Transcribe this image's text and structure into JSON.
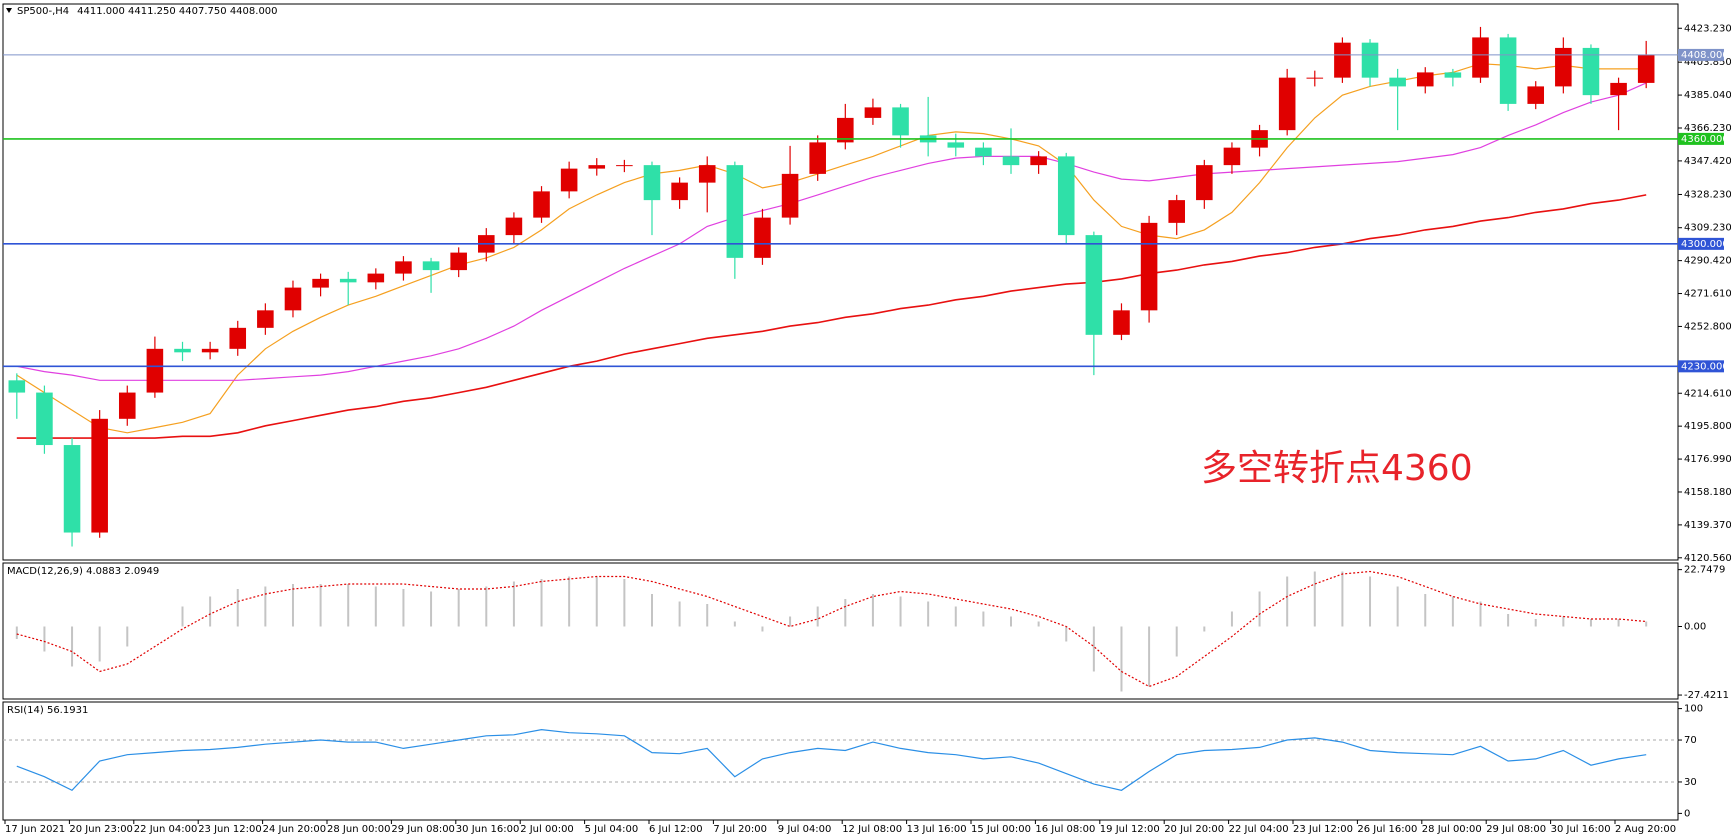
{
  "chart_data": [
    {
      "type": "candlestick",
      "title": "SP500-,H4",
      "subtitle": "4411.000 4411.250 4407.750 4408.000",
      "annotation": "多空转折点4360",
      "annotation_color": "#e8232a",
      "up_color": "#e00000",
      "down_color": "#2fe0a8",
      "open": [
        4222,
        4215,
        4185,
        4135,
        4200,
        4215,
        4240,
        4238,
        4240,
        4252,
        4262,
        4275,
        4280,
        4278,
        4283,
        4290,
        4285,
        4295,
        4305,
        4315,
        4330,
        4343,
        4345,
        4345,
        4325,
        4335,
        4345,
        4292,
        4315,
        4340,
        4358,
        4372,
        4378,
        4362,
        4358,
        4355,
        4350,
        4345,
        4350,
        4305,
        4248,
        4262,
        4312,
        4325,
        4345,
        4355,
        4365,
        4395,
        4395,
        4415,
        4395,
        4390,
        4398,
        4395,
        4418,
        4380,
        4390,
        4412,
        4385,
        4392
      ],
      "high": [
        4226,
        4219,
        4189,
        4205,
        4219,
        4247,
        4244,
        4244,
        4256,
        4266,
        4279,
        4283,
        4284,
        4286,
        4293,
        4292,
        4298,
        4309,
        4318,
        4333,
        4347,
        4349,
        4348,
        4347,
        4338,
        4350,
        4347,
        4320,
        4356,
        4362,
        4380,
        4383,
        4380,
        4384,
        4363,
        4358,
        4366,
        4353,
        4352,
        4307,
        4266,
        4316,
        4328,
        4348,
        4358,
        4368,
        4400,
        4399,
        4418,
        4417,
        4400,
        4401,
        4400,
        4424,
        4420,
        4393,
        4418,
        4414,
        4395,
        4416
      ],
      "low": [
        4200,
        4180,
        4127,
        4132,
        4196,
        4212,
        4233,
        4234,
        4236,
        4248,
        4258,
        4270,
        4265,
        4274,
        4279,
        4272,
        4281,
        4290,
        4300,
        4312,
        4326,
        4339,
        4341,
        4305,
        4320,
        4318,
        4280,
        4288,
        4311,
        4336,
        4354,
        4368,
        4355,
        4350,
        4350,
        4345,
        4340,
        4340,
        4300,
        4225,
        4245,
        4255,
        4305,
        4320,
        4340,
        4350,
        4362,
        4390,
        4392,
        4390,
        4365,
        4386,
        4390,
        4392,
        4376,
        4377,
        4386,
        4380,
        4365,
        4389
      ],
      "close": [
        4215,
        4185,
        4135,
        4200,
        4215,
        4240,
        4238,
        4240,
        4252,
        4262,
        4275,
        4280,
        4278,
        4283,
        4290,
        4285,
        4295,
        4305,
        4315,
        4330,
        4343,
        4345,
        4345,
        4325,
        4335,
        4345,
        4292,
        4315,
        4340,
        4358,
        4372,
        4378,
        4362,
        4358,
        4355,
        4350,
        4345,
        4350,
        4305,
        4248,
        4262,
        4312,
        4325,
        4345,
        4355,
        4365,
        4395,
        4395,
        4415,
        4395,
        4390,
        4398,
        4395,
        4418,
        4380,
        4390,
        4412,
        4385,
        4392,
        4408
      ],
      "series": [
        {
          "color": "#f5a020",
          "values": [
            4225,
            4215,
            4205,
            4195,
            4192,
            4195,
            4198,
            4203,
            4225,
            4240,
            4250,
            4258,
            4265,
            4270,
            4276,
            4282,
            4288,
            4292,
            4298,
            4308,
            4320,
            4328,
            4335,
            4340,
            4342,
            4345,
            4340,
            4332,
            4335,
            4340,
            4345,
            4350,
            4356,
            4362,
            4364,
            4363,
            4360,
            4356,
            4345,
            4325,
            4310,
            4305,
            4303,
            4308,
            4318,
            4335,
            4355,
            4372,
            4385,
            4390,
            4393,
            4396,
            4398,
            4403,
            4402,
            4400,
            4402,
            4400,
            4400,
            4400
          ]
        },
        {
          "color": "#e040e0",
          "values": [
            4230,
            4227,
            4225,
            4222,
            4222,
            4222,
            4222,
            4222,
            4222,
            4223,
            4224,
            4225,
            4227,
            4230,
            4233,
            4236,
            4240,
            4246,
            4253,
            4262,
            4270,
            4278,
            4286,
            4293,
            4300,
            4310,
            4315,
            4319,
            4323,
            4328,
            4333,
            4338,
            4342,
            4346,
            4349,
            4350,
            4350,
            4350,
            4346,
            4341,
            4337,
            4336,
            4338,
            4340,
            4341,
            4342,
            4343,
            4344,
            4345,
            4346,
            4347,
            4349,
            4351,
            4355,
            4362,
            4368,
            4375,
            4381,
            4385,
            4392
          ]
        },
        {
          "color": "#e81010",
          "values": [
            4189,
            4189,
            4189,
            4189,
            4189,
            4189,
            4190,
            4190,
            4192,
            4196,
            4199,
            4202,
            4205,
            4207,
            4210,
            4212,
            4215,
            4218,
            4222,
            4226,
            4230,
            4233,
            4237,
            4240,
            4243,
            4246,
            4248,
            4250,
            4253,
            4255,
            4258,
            4260,
            4263,
            4265,
            4268,
            4270,
            4273,
            4275,
            4277,
            4278,
            4280,
            4283,
            4285,
            4288,
            4290,
            4293,
            4295,
            4298,
            4300,
            4303,
            4305,
            4308,
            4310,
            4313,
            4315,
            4318,
            4320,
            4323,
            4325,
            4328
          ]
        }
      ],
      "levels": [
        {
          "value": 4408,
          "label": "4408.000",
          "color": "#7f93c9"
        },
        {
          "value": 4360,
          "label": "4360.000",
          "color": "#1fc21f"
        },
        {
          "value": 4300,
          "label": "4300.000",
          "color": "#2f54d6"
        },
        {
          "value": 4230,
          "label": "4230.000",
          "color": "#2f54d6"
        }
      ],
      "ylim": [
        4119.3,
        4437.1
      ],
      "yticks": [
        {
          "value": 4423.23,
          "label": "4423.230"
        },
        {
          "value": 4403.85,
          "label": "4403.850"
        },
        {
          "value": 4385.04,
          "label": "4385.040"
        },
        {
          "value": 4366.23,
          "label": "4366.230"
        },
        {
          "value": 4347.42,
          "label": "4347.420"
        },
        {
          "value": 4328.23,
          "label": "4328.230"
        },
        {
          "value": 4309.23,
          "label": "4309.230"
        },
        {
          "value": 4290.42,
          "label": "4290.420"
        },
        {
          "value": 4271.61,
          "label": "4271.610"
        },
        {
          "value": 4252.8,
          "label": "4252.800"
        },
        {
          "value": 4214.61,
          "label": "4214.610"
        },
        {
          "value": 4195.8,
          "label": "4195.800"
        },
        {
          "value": 4176.99,
          "label": "4176.990"
        },
        {
          "value": 4158.18,
          "label": "4158.180"
        },
        {
          "value": 4139.37,
          "label": "4139.370"
        },
        {
          "value": 4120.56,
          "label": "4120.560"
        }
      ]
    },
    {
      "type": "macd",
      "title": "MACD(12,26,9) 4.0883 2.0949",
      "histogram": {
        "color": "#c4c4c4",
        "values": [
          -5,
          -10,
          -16,
          -14,
          -8,
          0,
          8,
          12,
          15,
          16,
          17,
          17,
          17,
          16,
          15,
          14,
          15,
          16,
          18,
          19,
          20,
          20,
          19,
          13,
          10,
          9,
          2,
          -2,
          4,
          8,
          11,
          13,
          12,
          10,
          8,
          6,
          4,
          2,
          -6,
          -18,
          -26,
          -24,
          -12,
          -2,
          6,
          14,
          20,
          22,
          22,
          20,
          16,
          13,
          12,
          10,
          5,
          3,
          4,
          3,
          3,
          2
        ]
      },
      "signal": {
        "color": "#e00000",
        "values": [
          -3,
          -6,
          -10,
          -18,
          -15,
          -8,
          -1,
          5,
          10,
          13,
          15,
          16,
          17,
          17,
          17,
          16,
          15,
          15,
          16,
          18,
          19,
          20,
          20,
          18,
          15,
          12,
          8,
          4,
          0,
          3,
          8,
          12,
          14,
          13,
          11,
          9,
          7,
          4,
          0,
          -8,
          -18,
          -24,
          -20,
          -12,
          -4,
          5,
          12,
          17,
          21,
          22,
          20,
          16,
          12,
          9,
          7,
          5,
          4,
          3,
          3,
          2
        ]
      },
      "ylim": [
        -29,
        25.4
      ],
      "yticks": [
        22.7479,
        {
          "value": 0,
          "label": "0.00"
        },
        -27.4211
      ]
    },
    {
      "type": "line",
      "title": "RSI(14) 56.1931",
      "color": "#2b8fe6",
      "values": [
        45,
        35,
        22,
        50,
        56,
        58,
        60,
        61,
        63,
        66,
        68,
        70,
        68,
        68,
        62,
        66,
        70,
        74,
        75,
        80,
        77,
        76,
        74,
        58,
        57,
        62,
        35,
        52,
        58,
        62,
        60,
        68,
        62,
        58,
        56,
        52,
        54,
        48,
        38,
        28,
        22,
        40,
        56,
        60,
        61,
        63,
        70,
        72,
        68,
        60,
        58,
        57,
        56,
        64,
        50,
        52,
        60,
        46,
        52,
        56
      ],
      "levels": [
        30,
        70
      ],
      "ylim": [
        -6.3,
        106.3
      ],
      "yticks": [
        0,
        30,
        70,
        100
      ],
      "x_labels": [
        "17 Jun 2021",
        "20 Jun 23:00",
        "22 Jun 04:00",
        "23 Jun 12:00",
        "24 Jun 20:00",
        "28 Jun 00:00",
        "29 Jun 08:00",
        "30 Jun 16:00",
        "2 Jul 00:00",
        "5 Jul 04:00",
        "6 Jul 12:00",
        "7 Jul 20:00",
        "9 Jul 04:00",
        "12 Jul 08:00",
        "13 Jul 16:00",
        "15 Jul 00:00",
        "16 Jul 08:00",
        "19 Jul 12:00",
        "20 Jul 20:00",
        "22 Jul 04:00",
        "23 Jul 12:00",
        "26 Jul 16:00",
        "28 Jul 00:00",
        "29 Jul 08:00",
        "30 Jul 16:00",
        "2 Aug 20:00"
      ]
    }
  ]
}
